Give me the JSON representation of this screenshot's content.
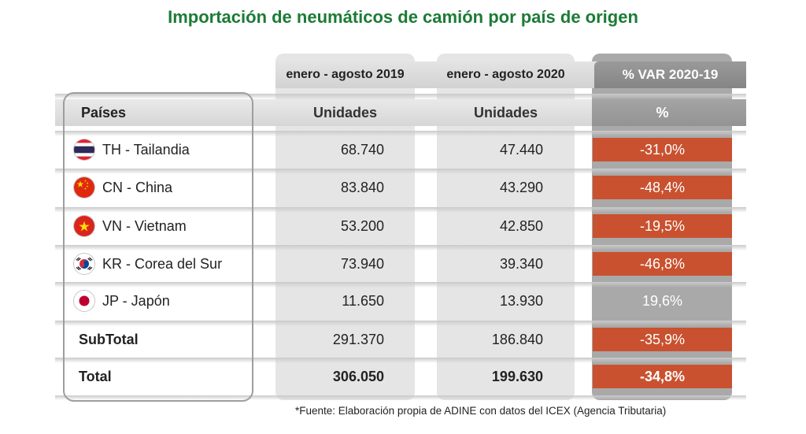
{
  "chart_data": {
    "type": "table",
    "title": "Importación de neumáticos de camión por país de origen",
    "period_headers": [
      "enero - agosto 2019",
      "enero - agosto 2020",
      "% VAR 2020-19"
    ],
    "column_headers": [
      "Países",
      "Unidades",
      "Unidades",
      "%"
    ],
    "rows": [
      {
        "label": "TH - Tailandia",
        "flag_icon": "thailand-flag-icon",
        "units_2019": "68.740",
        "units_2020": "47.440",
        "var_pct": "-31,0%"
      },
      {
        "label": "CN - China",
        "flag_icon": "china-flag-icon",
        "units_2019": "83.840",
        "units_2020": "43.290",
        "var_pct": "-48,4%"
      },
      {
        "label": "VN - Vietnam",
        "flag_icon": "vietnam-flag-icon",
        "units_2019": "53.200",
        "units_2020": "42.850",
        "var_pct": "-19,5%"
      },
      {
        "label": "KR - Corea del Sur",
        "flag_icon": "south-korea-flag-icon",
        "units_2019": "73.940",
        "units_2020": "39.340",
        "var_pct": "-46,8%"
      },
      {
        "label": "JP - Japón",
        "flag_icon": "japan-flag-icon",
        "units_2019": "11.650",
        "units_2020": "13.930",
        "var_pct": "19,6%"
      }
    ],
    "subtotal": {
      "label": "SubTotal",
      "units_2019": "291.370",
      "units_2020": "186.840",
      "var_pct": "-35,9%"
    },
    "total": {
      "label": "Total",
      "units_2019": "306.050",
      "units_2020": "199.630",
      "var_pct": "-34,8%"
    }
  },
  "footnote": "*Fuente: Elaboración propia de ADINE con datos del ICEX (Agencia Tributaria)",
  "colors": {
    "title": "#1c7b36",
    "negative_cell": "#c9512f",
    "var_header": "#8e8e8e"
  }
}
